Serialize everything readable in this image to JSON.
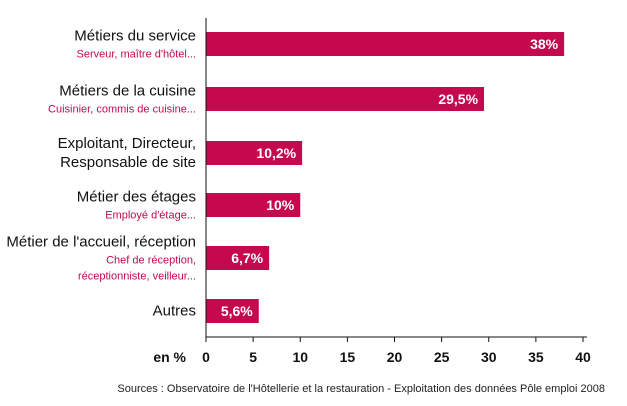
{
  "chart_data": {
    "type": "bar",
    "orientation": "horizontal",
    "categories": [
      {
        "label": [
          "Métiers du service"
        ],
        "sublabel": [
          "Serveur, maître d'hôtel..."
        ],
        "value": 38,
        "value_label": "38%"
      },
      {
        "label": [
          "Métiers de la cuisine"
        ],
        "sublabel": [
          "Cuisinier, commis de cuisine..."
        ],
        "value": 29.5,
        "value_label": "29,5%"
      },
      {
        "label": [
          "Exploitant, Directeur,",
          "Responsable de site"
        ],
        "sublabel": [],
        "value": 10.2,
        "value_label": "10,2%"
      },
      {
        "label": [
          "Métier des étages"
        ],
        "sublabel": [
          "Employé d'étage..."
        ],
        "value": 10,
        "value_label": "10%"
      },
      {
        "label": [
          "Métier de l'accueil, réception"
        ],
        "sublabel": [
          "Chef de réception,",
          "réceptionniste, veilleur..."
        ],
        "value": 6.7,
        "value_label": "6,7%"
      },
      {
        "label": [
          "Autres"
        ],
        "sublabel": [],
        "value": 5.6,
        "value_label": "5,6%"
      }
    ],
    "xlabel": "en %",
    "xlim": [
      0,
      40
    ],
    "xticks": [
      0,
      5,
      10,
      15,
      20,
      25,
      30,
      35,
      40
    ],
    "grid": false,
    "legend": "none"
  },
  "source": "Sources : Observatoire de l'Hôtellerie et la restauration - Exploitation des données Pôle emploi 2008",
  "colors": {
    "bar": "#C4094F",
    "sublabel": "#C4094F",
    "axis": "#111111"
  }
}
